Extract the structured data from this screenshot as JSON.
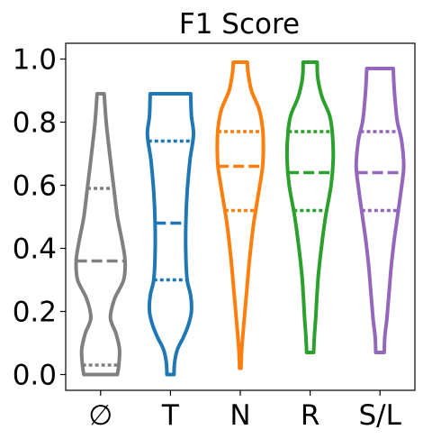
{
  "chart_data": {
    "type": "violin",
    "title": "F1 Score",
    "xlabel": "",
    "ylabel": "",
    "ylim": [
      -0.05,
      1.05
    ],
    "yticks": [
      0.0,
      0.2,
      0.4,
      0.6,
      0.8,
      1.0
    ],
    "ytick_labels": [
      "0.0",
      "0.2",
      "0.4",
      "0.6",
      "0.8",
      "1.0"
    ],
    "grid": false,
    "categories": [
      "∅",
      "T",
      "N",
      "R",
      "S/L"
    ],
    "series": [
      {
        "category": "∅",
        "color": "#808080",
        "min": 0.0,
        "max": 0.89,
        "quartiles": [
          0.03,
          0.36,
          0.59
        ],
        "profile": [
          [
            0.0,
            0.24
          ],
          [
            0.03,
            0.26
          ],
          [
            0.08,
            0.27
          ],
          [
            0.13,
            0.22
          ],
          [
            0.18,
            0.14
          ],
          [
            0.24,
            0.2
          ],
          [
            0.3,
            0.33
          ],
          [
            0.36,
            0.35
          ],
          [
            0.42,
            0.31
          ],
          [
            0.5,
            0.24
          ],
          [
            0.59,
            0.19
          ],
          [
            0.7,
            0.13
          ],
          [
            0.8,
            0.08
          ],
          [
            0.89,
            0.05
          ]
        ]
      },
      {
        "category": "T",
        "color": "#1f77b4",
        "min": 0.0,
        "max": 0.89,
        "quartiles": [
          0.3,
          0.48,
          0.74
        ],
        "profile": [
          [
            0.0,
            0.05
          ],
          [
            0.04,
            0.06
          ],
          [
            0.08,
            0.1
          ],
          [
            0.12,
            0.19
          ],
          [
            0.16,
            0.26
          ],
          [
            0.2,
            0.3
          ],
          [
            0.25,
            0.29
          ],
          [
            0.3,
            0.24
          ],
          [
            0.38,
            0.22
          ],
          [
            0.48,
            0.22
          ],
          [
            0.58,
            0.24
          ],
          [
            0.68,
            0.28
          ],
          [
            0.76,
            0.33
          ],
          [
            0.82,
            0.3
          ],
          [
            0.89,
            0.29
          ]
        ]
      },
      {
        "category": "N",
        "color": "#ff7f0e",
        "min": 0.02,
        "max": 0.99,
        "quartiles": [
          0.52,
          0.66,
          0.77
        ],
        "profile": [
          [
            0.02,
            0.01
          ],
          [
            0.08,
            0.02
          ],
          [
            0.16,
            0.05
          ],
          [
            0.26,
            0.09
          ],
          [
            0.36,
            0.13
          ],
          [
            0.46,
            0.18
          ],
          [
            0.52,
            0.22
          ],
          [
            0.6,
            0.28
          ],
          [
            0.66,
            0.32
          ],
          [
            0.72,
            0.33
          ],
          [
            0.78,
            0.32
          ],
          [
            0.84,
            0.27
          ],
          [
            0.9,
            0.16
          ],
          [
            0.96,
            0.11
          ],
          [
            0.99,
            0.1
          ]
        ]
      },
      {
        "category": "R",
        "color": "#2ca02c",
        "min": 0.07,
        "max": 0.99,
        "quartiles": [
          0.52,
          0.64,
          0.77
        ],
        "profile": [
          [
            0.07,
            0.05
          ],
          [
            0.12,
            0.06
          ],
          [
            0.18,
            0.08
          ],
          [
            0.26,
            0.1
          ],
          [
            0.32,
            0.12
          ],
          [
            0.4,
            0.16
          ],
          [
            0.5,
            0.22
          ],
          [
            0.6,
            0.3
          ],
          [
            0.68,
            0.33
          ],
          [
            0.76,
            0.32
          ],
          [
            0.82,
            0.28
          ],
          [
            0.88,
            0.17
          ],
          [
            0.94,
            0.11
          ],
          [
            0.99,
            0.1
          ]
        ]
      },
      {
        "category": "S/L",
        "color": "#9467bd",
        "min": 0.07,
        "max": 0.97,
        "quartiles": [
          0.52,
          0.64,
          0.77
        ],
        "profile": [
          [
            0.07,
            0.06
          ],
          [
            0.12,
            0.07
          ],
          [
            0.18,
            0.1
          ],
          [
            0.26,
            0.13
          ],
          [
            0.34,
            0.16
          ],
          [
            0.42,
            0.2
          ],
          [
            0.5,
            0.25
          ],
          [
            0.58,
            0.3
          ],
          [
            0.66,
            0.34
          ],
          [
            0.74,
            0.31
          ],
          [
            0.8,
            0.25
          ],
          [
            0.86,
            0.22
          ],
          [
            0.92,
            0.2
          ],
          [
            0.97,
            0.19
          ]
        ]
      }
    ]
  }
}
